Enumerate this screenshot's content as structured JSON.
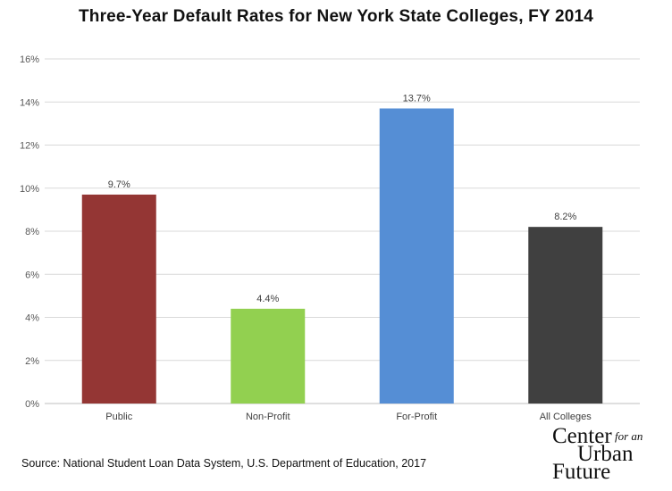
{
  "chart_data": {
    "type": "bar",
    "title": "Three-Year Default Rates for New York State Colleges, FY 2014",
    "categories": [
      "Public",
      "Non-Profit",
      "For-Profit",
      "All Colleges"
    ],
    "values": [
      9.7,
      4.4,
      13.7,
      8.2
    ],
    "data_labels": [
      "9.7%",
      "4.4%",
      "13.7%",
      "8.2%"
    ],
    "colors": [
      "#943634",
      "#92d050",
      "#558ed5",
      "#404040"
    ],
    "ylim": [
      0,
      16
    ],
    "yticks": [
      0,
      2,
      4,
      6,
      8,
      10,
      12,
      14,
      16
    ],
    "ytick_labels": [
      "0%",
      "2%",
      "4%",
      "6%",
      "8%",
      "10%",
      "12%",
      "14%",
      "16%"
    ],
    "xlabel": "",
    "ylabel": "",
    "grid": true,
    "legend": "none"
  },
  "source": "Source: National Student Loan Data System, U.S. Department of Education, 2017",
  "logo": {
    "line1": "Center",
    "line1_small": "for an",
    "line2": "Urban",
    "line3": "Future"
  }
}
